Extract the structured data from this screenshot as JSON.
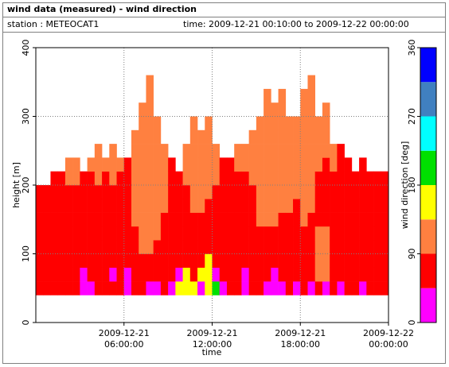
{
  "chart_data": {
    "type": "heatmap",
    "title": "wind data (measured) - wind direction",
    "station": "station : METEOCAT1",
    "period": "time: 2009-12-21 00:10:00 to 2009-12-22 00:00:00",
    "xlabel": "time",
    "ylabel": "height [m]",
    "colorbar_label": "wind direction [deg]",
    "xlim": [
      "2009-12-21 00:00:00",
      "2009-12-22 00:00:00"
    ],
    "xticks": [
      {
        "value": "2009-12-21 06:00:00",
        "label": [
          "2009-12-21",
          "06:00:00"
        ]
      },
      {
        "value": "2009-12-21 12:00:00",
        "label": [
          "2009-12-21",
          "12:00:00"
        ]
      },
      {
        "value": "2009-12-21 18:00:00",
        "label": [
          "2009-12-21",
          "18:00:00"
        ]
      },
      {
        "value": "2009-12-22 00:00:00",
        "label": [
          "2009-12-22",
          "00:00:00"
        ]
      }
    ],
    "ylim": [
      0,
      400
    ],
    "yticks": [
      0,
      100,
      200,
      300,
      400
    ],
    "grid": true,
    "x_start": "2009-12-21 00:00:00",
    "x_step_minutes": 30,
    "y_start": 40,
    "y_step": 20,
    "colorbar": {
      "lim": [
        0,
        360
      ],
      "ticks": [
        0,
        90,
        180,
        270,
        360
      ],
      "bounds": [
        0,
        45,
        90,
        135,
        180,
        225,
        270,
        315,
        360
      ],
      "colors": [
        "#ff00ff",
        "#ff0000",
        "#ff8040",
        "#ffff00",
        "#00e000",
        "#00ffff",
        "#4080c0",
        "#0000ff"
      ]
    },
    "values": [
      [
        70,
        70,
        70,
        70,
        70,
        70,
        70,
        70
      ],
      [
        70,
        70,
        70,
        70,
        70,
        70,
        70,
        70
      ],
      [
        70,
        70,
        70,
        70,
        70,
        70,
        70,
        70,
        70
      ],
      [
        70,
        70,
        70,
        70,
        70,
        70,
        70,
        70,
        70
      ],
      [
        70,
        70,
        70,
        70,
        70,
        70,
        70,
        70,
        110,
        110
      ],
      [
        70,
        70,
        70,
        70,
        70,
        70,
        70,
        70,
        110,
        110
      ],
      [
        30,
        30,
        70,
        70,
        70,
        70,
        70,
        70,
        70
      ],
      [
        30,
        70,
        70,
        70,
        70,
        70,
        70,
        70,
        70,
        110
      ],
      [
        70,
        70,
        70,
        70,
        70,
        70,
        70,
        70,
        110,
        110,
        110
      ],
      [
        70,
        70,
        70,
        70,
        70,
        70,
        70,
        70,
        70,
        110
      ],
      [
        70,
        30,
        70,
        70,
        70,
        70,
        70,
        70,
        110,
        110,
        110
      ],
      [
        70,
        70,
        70,
        70,
        70,
        70,
        70,
        70,
        70,
        110
      ],
      [
        30,
        30,
        70,
        70,
        70,
        70,
        70,
        70,
        70,
        70
      ],
      [
        70,
        70,
        70,
        70,
        70,
        110,
        110,
        110,
        110,
        110,
        110,
        110
      ],
      [
        70,
        70,
        70,
        110,
        110,
        110,
        110,
        110,
        110,
        110,
        110,
        110,
        110,
        110
      ],
      [
        30,
        70,
        70,
        110,
        110,
        110,
        110,
        110,
        110,
        110,
        110,
        110,
        110,
        110,
        110,
        110
      ],
      [
        30,
        70,
        70,
        70,
        110,
        110,
        110,
        110,
        110,
        110,
        110,
        110,
        110
      ],
      [
        70,
        70,
        70,
        70,
        70,
        70,
        110,
        110,
        110,
        110,
        110
      ],
      [
        30,
        70,
        70,
        70,
        70,
        70,
        70,
        70,
        70,
        70
      ],
      [
        160,
        30,
        70,
        70,
        70,
        70,
        70,
        70,
        70
      ],
      [
        160,
        160,
        70,
        70,
        70,
        70,
        70,
        70,
        110,
        110,
        110
      ],
      [
        160,
        70,
        70,
        70,
        70,
        70,
        110,
        110,
        110,
        110,
        110,
        110,
        110
      ],
      [
        30,
        160,
        70,
        70,
        70,
        70,
        110,
        110,
        110,
        110,
        110,
        110
      ],
      [
        160,
        160,
        160,
        70,
        70,
        70,
        70,
        110,
        110,
        110,
        110,
        110,
        110
      ],
      [
        200,
        30,
        70,
        70,
        70,
        70,
        70,
        70,
        110,
        110,
        110
      ],
      [
        30,
        70,
        70,
        70,
        70,
        70,
        70,
        70,
        70,
        70
      ],
      [
        70,
        70,
        70,
        70,
        70,
        70,
        70,
        70,
        70,
        70
      ],
      [
        70,
        70,
        70,
        70,
        70,
        70,
        70,
        70,
        70,
        110,
        110
      ],
      [
        30,
        30,
        70,
        70,
        70,
        70,
        70,
        70,
        70,
        110,
        110
      ],
      [
        70,
        70,
        70,
        70,
        70,
        70,
        70,
        70,
        110,
        110,
        110,
        110
      ],
      [
        70,
        70,
        70,
        70,
        70,
        110,
        110,
        110,
        110,
        110,
        110,
        110,
        110
      ],
      [
        30,
        70,
        70,
        70,
        70,
        110,
        110,
        110,
        110,
        110,
        110,
        110,
        110,
        110,
        110
      ],
      [
        30,
        30,
        70,
        70,
        70,
        110,
        110,
        110,
        110,
        110,
        110,
        110,
        110,
        110
      ],
      [
        30,
        70,
        70,
        70,
        70,
        70,
        110,
        110,
        110,
        110,
        110,
        110,
        110,
        110,
        110
      ],
      [
        70,
        70,
        70,
        70,
        70,
        70,
        110,
        110,
        110,
        110,
        110,
        110,
        110
      ],
      [
        30,
        70,
        70,
        70,
        70,
        70,
        70,
        110,
        110,
        110,
        110,
        110,
        110
      ],
      [
        70,
        70,
        70,
        70,
        70,
        110,
        110,
        110,
        110,
        110,
        110,
        110,
        110,
        110,
        110
      ],
      [
        30,
        70,
        70,
        70,
        70,
        70,
        110,
        110,
        110,
        110,
        110,
        110,
        110,
        110,
        110,
        110
      ],
      [
        70,
        110,
        110,
        110,
        110,
        70,
        70,
        70,
        70,
        110,
        110,
        110,
        110
      ],
      [
        30,
        110,
        110,
        110,
        110,
        70,
        70,
        70,
        70,
        70,
        110,
        110,
        110,
        110
      ],
      [
        70,
        70,
        70,
        70,
        70,
        70,
        70,
        70,
        70,
        110,
        110
      ],
      [
        30,
        70,
        70,
        70,
        70,
        70,
        70,
        70,
        70,
        70,
        70
      ],
      [
        70,
        70,
        70,
        70,
        70,
        70,
        70,
        70,
        70,
        70
      ],
      [
        70,
        70,
        70,
        70,
        70,
        70,
        70,
        70,
        70
      ],
      [
        30,
        70,
        70,
        70,
        70,
        70,
        70,
        70,
        70,
        70
      ],
      [
        70,
        70,
        70,
        70,
        70,
        70,
        70,
        70,
        70
      ],
      [
        70,
        70,
        70,
        70,
        70,
        70,
        70,
        70,
        70
      ],
      [
        70,
        70,
        70,
        70,
        70,
        70,
        70,
        70,
        70
      ]
    ]
  }
}
